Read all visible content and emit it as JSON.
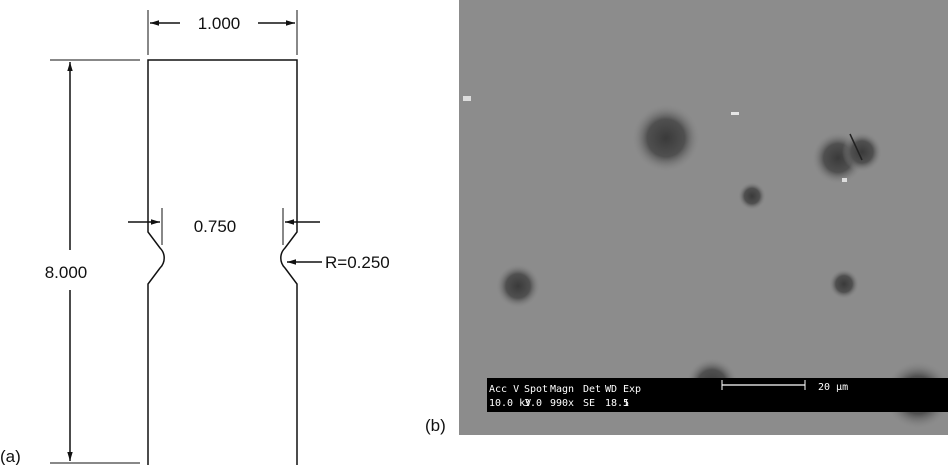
{
  "panel_a": {
    "label": "(a)",
    "width_dim": "1.000",
    "length_dim": "8.000",
    "neck_dim": "0.750",
    "radius_dim": "R=0.250"
  },
  "panel_b": {
    "label": "(b)",
    "info_headers": [
      "Acc V",
      "Spot",
      "Magn",
      "Det",
      "WD",
      "Exp"
    ],
    "info_values": [
      "10.0 kV",
      "3.0",
      "990x",
      "SE",
      "18.5",
      "1"
    ],
    "scale_label": "20 µm"
  }
}
